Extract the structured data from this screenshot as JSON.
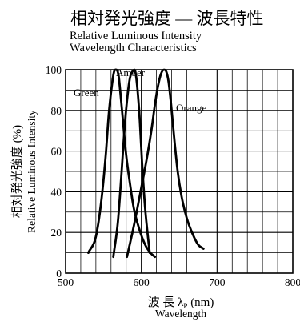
{
  "chart_data": {
    "type": "line",
    "title": "相対発光強度 — 波長特性",
    "subtitle_lines": [
      "Relative Luminous Intensity",
      "Wavelength Characteristics"
    ],
    "ylabel_jp": "相対発光強度 (%)",
    "ylabel_en": "Relative Luminous Intensity",
    "xlabel_jp": "波 長",
    "xlabel_symbol": "λ",
    "xlabel_subscript": "P",
    "xlabel_unit": "(nm)",
    "xlabel_en": "Wavelength",
    "xlim": [
      500,
      800
    ],
    "ylim": [
      0,
      100
    ],
    "x_ticks": [
      500,
      600,
      700,
      800
    ],
    "y_ticks": [
      0,
      20,
      40,
      60,
      80,
      100
    ],
    "grid": true,
    "series": [
      {
        "name": "Green",
        "x": [
          530,
          540,
          547,
          553,
          557,
          561,
          564,
          567,
          570,
          572,
          575,
          580,
          585,
          590,
          597,
          605,
          612,
          618
        ],
        "y": [
          10,
          18,
          35,
          58,
          78,
          92,
          99,
          100,
          97,
          90,
          78,
          58,
          44,
          32,
          22,
          14,
          10,
          8
        ]
      },
      {
        "name": "Amber",
        "x": [
          563,
          569,
          574,
          578,
          582,
          585,
          588,
          591,
          593,
          595,
          598,
          601,
          605,
          611
        ],
        "y": [
          8,
          25,
          50,
          72,
          88,
          96,
          99,
          100,
          97,
          90,
          75,
          54,
          32,
          10
        ]
      },
      {
        "name": "Orange",
        "x": [
          581,
          590,
          600,
          608,
          614,
          618,
          622,
          626,
          630,
          633,
          636,
          639,
          643,
          648,
          653,
          660,
          668,
          675,
          682
        ],
        "y": [
          8,
          23,
          42,
          58,
          72,
          83,
          92,
          98,
          100,
          99,
          94,
          84,
          68,
          50,
          38,
          27,
          19,
          14,
          12
        ]
      }
    ]
  }
}
